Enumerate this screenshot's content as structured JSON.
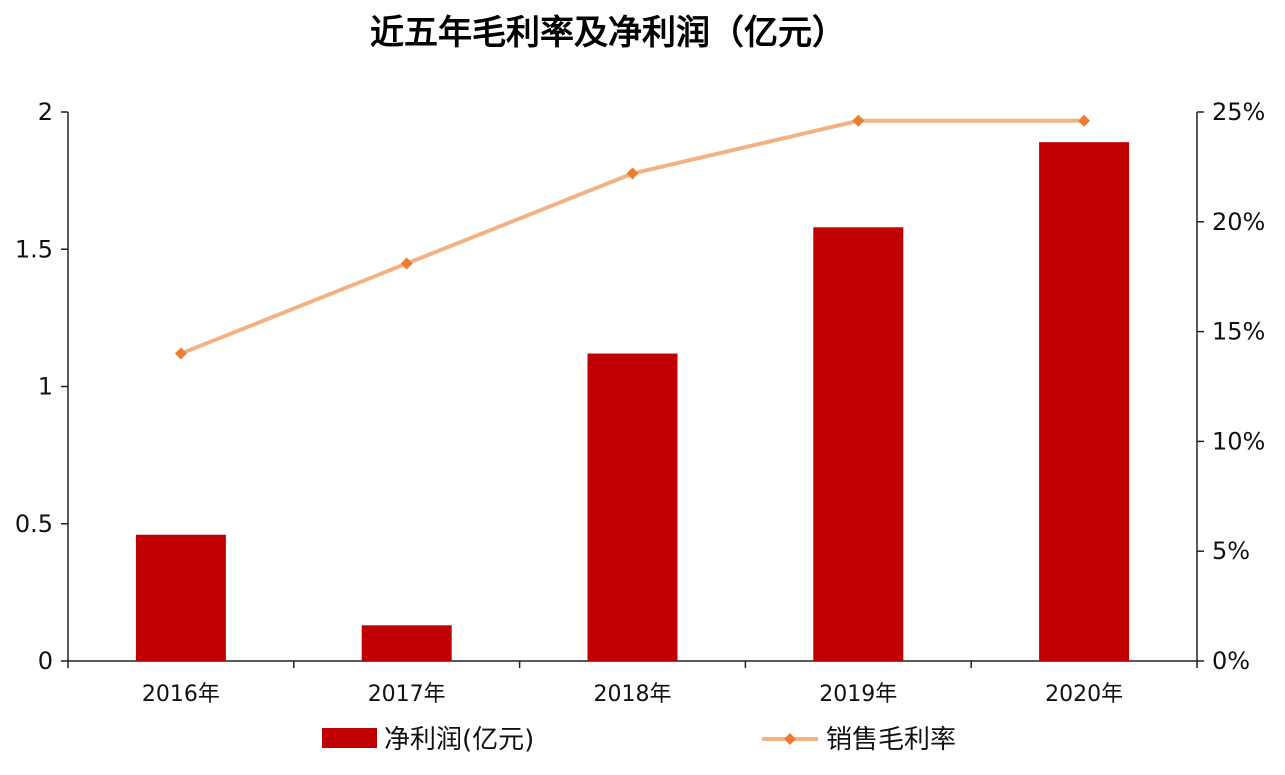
{
  "chart_data": {
    "type": "bar+line",
    "title": "近五年毛利率及净利润（亿元）",
    "categories": [
      "2016年",
      "2017年",
      "2018年",
      "2019年",
      "2020年"
    ],
    "series": [
      {
        "name": "净利润(亿元)",
        "type": "bar",
        "axis": "left",
        "values": [
          0.46,
          0.13,
          1.12,
          1.58,
          1.89
        ],
        "color": "#C00000"
      },
      {
        "name": "销售毛利率",
        "type": "line",
        "axis": "right",
        "values": [
          14.0,
          18.1,
          22.2,
          24.6,
          24.6
        ],
        "color": "#F4B183",
        "marker_color": "#ED7D31"
      }
    ],
    "y_left": {
      "min": 0,
      "max": 2,
      "ticks": [
        "0",
        "0.5",
        "1",
        "1.5",
        "2"
      ],
      "tick_values": [
        0,
        0.5,
        1,
        1.5,
        2
      ]
    },
    "y_right": {
      "min": 0,
      "max": 25,
      "ticks": [
        "0%",
        "5%",
        "10%",
        "15%",
        "20%",
        "25%"
      ],
      "tick_values": [
        0,
        5,
        10,
        15,
        20,
        25
      ]
    },
    "grid": false,
    "legend_position": "bottom"
  }
}
